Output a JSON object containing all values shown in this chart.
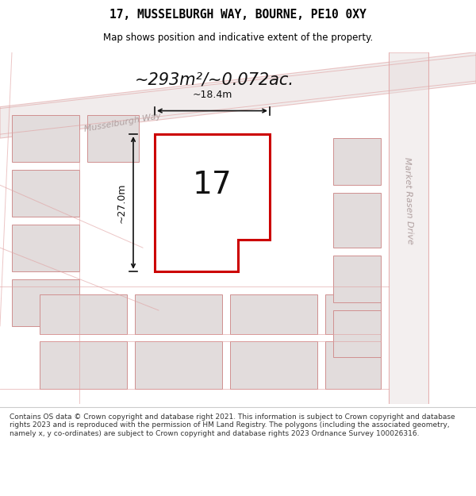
{
  "title": "17, MUSSELBURGH WAY, BOURNE, PE10 0XY",
  "subtitle": "Map shows position and indicative extent of the property.",
  "area_text": "~293m²/~0.072ac.",
  "number_label": "17",
  "dim_width": "~18.4m",
  "dim_height": "~27.0m",
  "street_label1": "Musselburgh Way",
  "street_label2": "Market Rasen Drive",
  "footer": "Contains OS data © Crown copyright and database right 2021. This information is subject to Crown copyright and database rights 2023 and is reproduced with the permission of HM Land Registry. The polygons (including the associated geometry, namely x, y co-ordinates) are subject to Crown copyright and database rights 2023 Ordnance Survey 100026316.",
  "bg_color": "#f0eeee",
  "map_bg": "#f0eded",
  "plot_fill": "#ffffff",
  "plot_edge": "#cc0000",
  "road_color": "#e0a0a0",
  "bldg_fill": "#e2dcdc",
  "bldg_edge": "#d09090",
  "footer_bg": "#ffffff",
  "title_color": "#000000"
}
